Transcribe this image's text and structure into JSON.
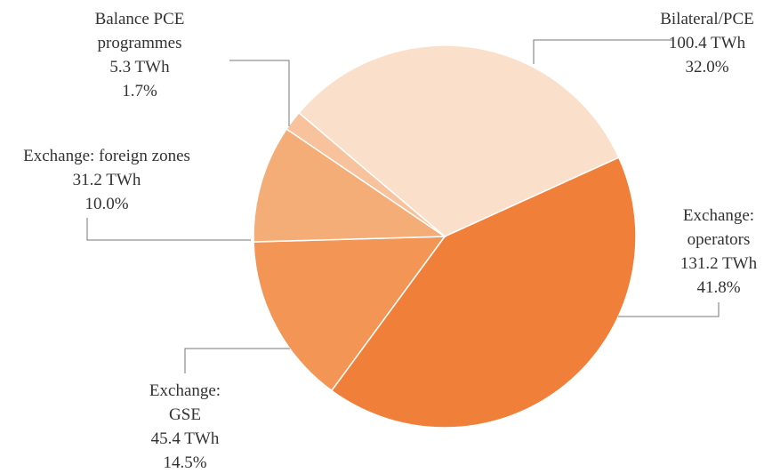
{
  "chart_data": {
    "type": "pie",
    "categories": [
      "Bilateral/PCE",
      "Exchange: operators",
      "Exchange: GSE",
      "Exchange: foreign zones",
      "Balance PCE programmes"
    ],
    "values": [
      100.4,
      131.2,
      45.4,
      31.2,
      5.3
    ],
    "value_labels": [
      "100.4 TWh",
      "131.2 TWh",
      "45.4 TWh",
      "31.2 TWh",
      "5.3 TWh"
    ],
    "shares": [
      32.0,
      41.8,
      14.5,
      10.0,
      1.7
    ],
    "share_labels": [
      "32.0%",
      "41.8%",
      "14.5%",
      "10.0%",
      "1.7%"
    ],
    "colors": [
      "#fae0cb",
      "#f07f3a",
      "#f39555",
      "#f5ad78",
      "#f7c29c"
    ]
  }
}
